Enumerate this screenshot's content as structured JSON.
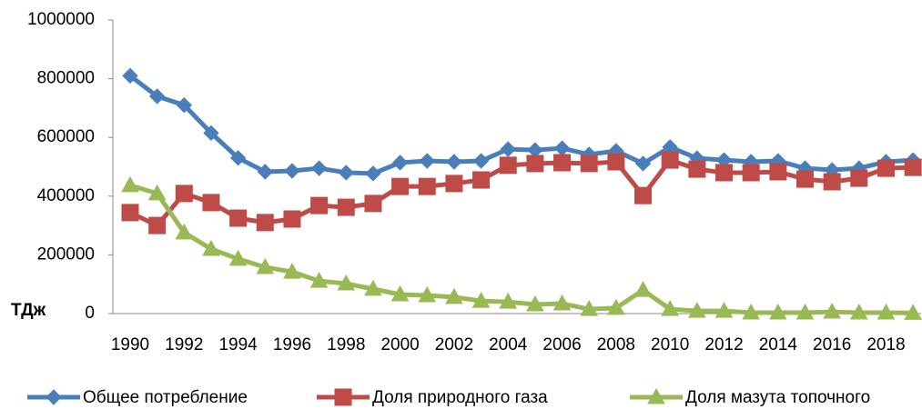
{
  "chart_data": {
    "type": "line",
    "y_unit": "ТДж",
    "categories": [
      "1990",
      null,
      "1992",
      null,
      "1994",
      null,
      "1996",
      null,
      "1998",
      null,
      "2000",
      null,
      "2002",
      null,
      "2004",
      null,
      "2006",
      null,
      "2008",
      null,
      "2010",
      null,
      "2012",
      null,
      "2014",
      null,
      "2016",
      null,
      "2018",
      null
    ],
    "series": [
      {
        "name": "Общее потребление",
        "color": "#4a7ebb",
        "marker": "diamond",
        "values": [
          810000,
          740000,
          710000,
          615000,
          530000,
          483000,
          486000,
          495000,
          480000,
          477000,
          514000,
          520000,
          517000,
          520000,
          560000,
          557000,
          563000,
          542000,
          554000,
          511000,
          567000,
          529000,
          523000,
          517000,
          520000,
          495000,
          489000,
          495000,
          517000,
          523000
        ]
      },
      {
        "name": "Доля природного газа",
        "color": "#be4b48",
        "marker": "square",
        "values": [
          344000,
          300000,
          409000,
          378000,
          325000,
          310000,
          322000,
          368000,
          362000,
          375000,
          433000,
          433000,
          443000,
          455000,
          505000,
          511000,
          514000,
          511000,
          517000,
          402000,
          523000,
          492000,
          480000,
          480000,
          483000,
          458000,
          449000,
          461000,
          495000,
          498000
        ]
      },
      {
        "name": "Доля мазута топочного",
        "color": "#98b954",
        "marker": "triangle",
        "values": [
          437000,
          409000,
          276000,
          220000,
          186000,
          158000,
          142000,
          111000,
          102000,
          84000,
          65000,
          62000,
          56000,
          43000,
          40000,
          31000,
          34000,
          15000,
          19000,
          80000,
          15000,
          9000,
          9000,
          3000,
          3000,
          3000,
          6000,
          3000,
          3000,
          2000
        ]
      }
    ],
    "ylim": [
      0,
      1000000
    ],
    "yticks": [
      0,
      200000,
      400000,
      600000,
      800000,
      1000000
    ],
    "grid": false,
    "legend": "bottom"
  }
}
